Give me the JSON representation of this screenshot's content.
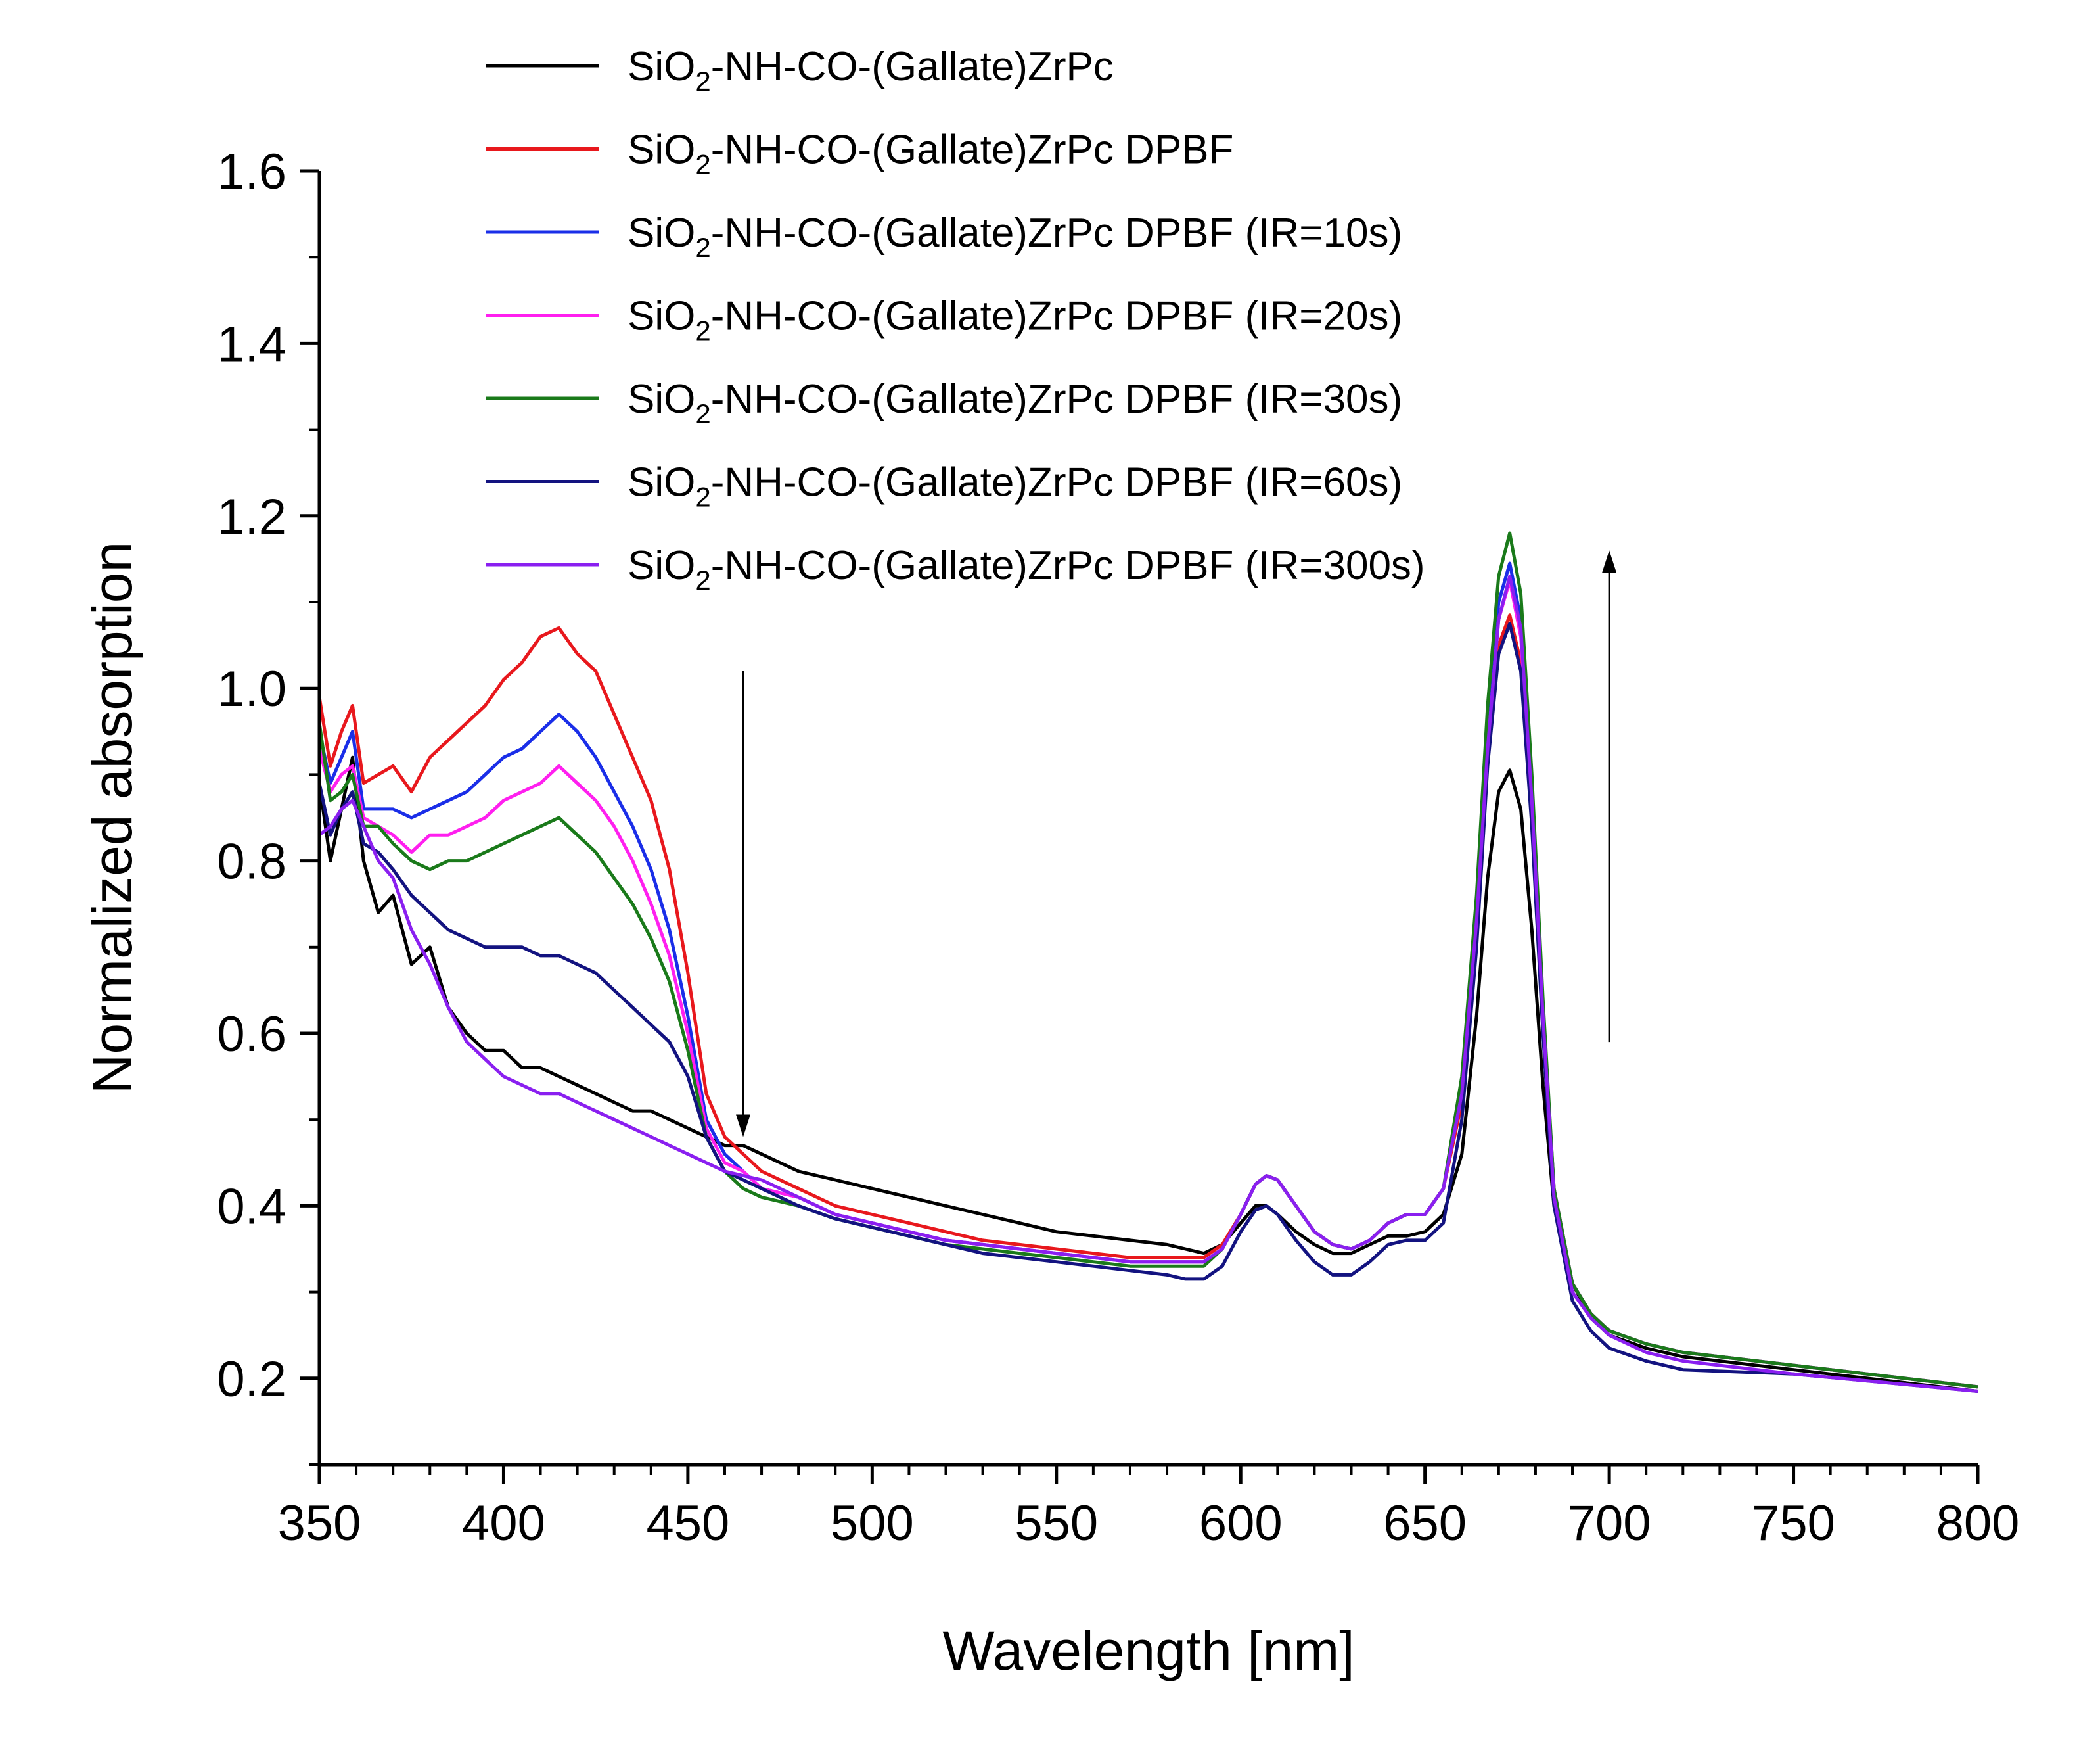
{
  "chart_data": {
    "type": "line",
    "title": "",
    "xlabel": "Wavelength [nm]",
    "ylabel": "Normalized absorption",
    "xlim": [
      350,
      800
    ],
    "ylim": [
      0.1,
      1.6
    ],
    "xticks": [
      350,
      400,
      450,
      500,
      550,
      600,
      650,
      700,
      750,
      800
    ],
    "xtick_labels": [
      "350",
      "400",
      "450",
      "500",
      "550",
      "600",
      "650",
      "700",
      "750",
      "800"
    ],
    "yticks": [
      0.2,
      0.4,
      0.6,
      0.8,
      1.0,
      1.2,
      1.4,
      1.6
    ],
    "ytick_labels": [
      "0.2",
      "0.4",
      "0.6",
      "0.8",
      "1.0",
      "1.2",
      "1.4",
      "1.6"
    ],
    "x": [
      350,
      353,
      356,
      359,
      362,
      366,
      370,
      375,
      380,
      385,
      390,
      395,
      400,
      405,
      410,
      415,
      420,
      425,
      430,
      435,
      440,
      445,
      450,
      455,
      460,
      465,
      470,
      480,
      490,
      500,
      510,
      520,
      530,
      540,
      550,
      560,
      570,
      580,
      585,
      590,
      595,
      600,
      604,
      607,
      610,
      615,
      620,
      625,
      630,
      635,
      640,
      645,
      650,
      655,
      660,
      664,
      667,
      670,
      673,
      676,
      679,
      682,
      685,
      690,
      695,
      700,
      710,
      720,
      750,
      800
    ],
    "legend_position": "top",
    "annotations": [
      {
        "type": "arrow",
        "direction": "down",
        "x": 465,
        "from_y": 1.02,
        "to_y": 0.48
      },
      {
        "type": "arrow",
        "direction": "up",
        "x": 700,
        "from_y": 0.59,
        "to_y": 1.16
      }
    ],
    "series": [
      {
        "name_parts": [
          "SiO",
          "2",
          "-NH-CO-(Gallate)ZrPc"
        ],
        "color": "#000000",
        "values": [
          0.89,
          0.8,
          0.86,
          0.92,
          0.8,
          0.74,
          0.76,
          0.68,
          0.7,
          0.63,
          0.6,
          0.58,
          0.58,
          0.56,
          0.56,
          0.55,
          0.54,
          0.53,
          0.52,
          0.51,
          0.51,
          0.5,
          0.49,
          0.48,
          0.47,
          0.47,
          0.46,
          0.44,
          0.43,
          0.42,
          0.41,
          0.4,
          0.39,
          0.38,
          0.37,
          0.365,
          0.36,
          0.355,
          0.35,
          0.345,
          0.355,
          0.38,
          0.4,
          0.4,
          0.39,
          0.37,
          0.355,
          0.345,
          0.345,
          0.355,
          0.365,
          0.365,
          0.37,
          0.39,
          0.46,
          0.62,
          0.78,
          0.88,
          0.905,
          0.86,
          0.72,
          0.54,
          0.4,
          0.31,
          0.27,
          0.25,
          0.235,
          0.225,
          0.21,
          0.185
        ]
      },
      {
        "name_parts": [
          "SiO",
          "2",
          "-NH-CO-(Gallate)ZrPc DPBF"
        ],
        "color": "#e8181d",
        "values": [
          0.99,
          0.91,
          0.95,
          0.98,
          0.89,
          0.9,
          0.91,
          0.88,
          0.92,
          0.94,
          0.96,
          0.98,
          1.01,
          1.03,
          1.06,
          1.07,
          1.04,
          1.02,
          0.97,
          0.92,
          0.87,
          0.79,
          0.67,
          0.53,
          0.48,
          0.46,
          0.44,
          0.42,
          0.4,
          0.39,
          0.38,
          0.37,
          0.36,
          0.355,
          0.35,
          0.345,
          0.34,
          0.34,
          0.34,
          0.34,
          0.355,
          0.39,
          0.425,
          0.435,
          0.43,
          0.4,
          0.37,
          0.355,
          0.35,
          0.36,
          0.38,
          0.39,
          0.39,
          0.42,
          0.52,
          0.72,
          0.92,
          1.05,
          1.085,
          1.03,
          0.86,
          0.62,
          0.42,
          0.31,
          0.275,
          0.255,
          0.24,
          0.23,
          0.215,
          0.19
        ]
      },
      {
        "name_parts": [
          "SiO",
          "2",
          "-NH-CO-(Gallate)ZrPc DPBF (IR=10s)"
        ],
        "color": "#1a2ee8",
        "values": [
          0.95,
          0.89,
          0.92,
          0.95,
          0.86,
          0.86,
          0.86,
          0.85,
          0.86,
          0.87,
          0.88,
          0.9,
          0.92,
          0.93,
          0.95,
          0.97,
          0.95,
          0.92,
          0.88,
          0.84,
          0.79,
          0.72,
          0.62,
          0.5,
          0.46,
          0.44,
          0.42,
          0.41,
          0.39,
          0.38,
          0.37,
          0.36,
          0.355,
          0.35,
          0.345,
          0.34,
          0.335,
          0.335,
          0.335,
          0.335,
          0.35,
          0.39,
          0.425,
          0.435,
          0.43,
          0.4,
          0.37,
          0.355,
          0.35,
          0.36,
          0.38,
          0.39,
          0.39,
          0.42,
          0.54,
          0.74,
          0.95,
          1.1,
          1.145,
          1.08,
          0.88,
          0.63,
          0.42,
          0.31,
          0.275,
          0.255,
          0.24,
          0.23,
          0.215,
          0.19
        ]
      },
      {
        "name_parts": [
          "SiO",
          "2",
          "-NH-CO-(Gallate)ZrPc DPBF (IR=20s)"
        ],
        "color": "#ff1fef",
        "values": [
          0.93,
          0.88,
          0.9,
          0.91,
          0.85,
          0.84,
          0.83,
          0.81,
          0.83,
          0.83,
          0.84,
          0.85,
          0.87,
          0.88,
          0.89,
          0.91,
          0.89,
          0.87,
          0.84,
          0.8,
          0.75,
          0.69,
          0.6,
          0.49,
          0.45,
          0.44,
          0.42,
          0.41,
          0.39,
          0.38,
          0.37,
          0.36,
          0.355,
          0.35,
          0.345,
          0.34,
          0.335,
          0.335,
          0.335,
          0.335,
          0.35,
          0.39,
          0.425,
          0.435,
          0.43,
          0.4,
          0.37,
          0.355,
          0.35,
          0.36,
          0.38,
          0.39,
          0.39,
          0.42,
          0.53,
          0.73,
          0.93,
          1.08,
          1.125,
          1.06,
          0.87,
          0.63,
          0.42,
          0.31,
          0.275,
          0.255,
          0.24,
          0.23,
          0.215,
          0.19
        ]
      },
      {
        "name_parts": [
          "SiO",
          "2",
          "-NH-CO-(Gallate)ZrPc DPBF (IR=30s)"
        ],
        "color": "#1a7a1a",
        "values": [
          0.96,
          0.87,
          0.88,
          0.9,
          0.84,
          0.84,
          0.82,
          0.8,
          0.79,
          0.8,
          0.8,
          0.81,
          0.82,
          0.83,
          0.84,
          0.85,
          0.83,
          0.81,
          0.78,
          0.75,
          0.71,
          0.66,
          0.58,
          0.48,
          0.44,
          0.42,
          0.41,
          0.4,
          0.385,
          0.375,
          0.365,
          0.355,
          0.35,
          0.345,
          0.34,
          0.335,
          0.33,
          0.33,
          0.33,
          0.33,
          0.35,
          0.39,
          0.425,
          0.435,
          0.43,
          0.4,
          0.37,
          0.355,
          0.35,
          0.36,
          0.38,
          0.39,
          0.39,
          0.42,
          0.55,
          0.76,
          0.98,
          1.13,
          1.18,
          1.11,
          0.9,
          0.64,
          0.42,
          0.31,
          0.275,
          0.255,
          0.24,
          0.23,
          0.215,
          0.19
        ]
      },
      {
        "name_parts": [
          "SiO",
          "2",
          "-NH-CO-(Gallate)ZrPc DPBF (IR=60s)"
        ],
        "color": "#131380",
        "values": [
          0.89,
          0.83,
          0.86,
          0.88,
          0.82,
          0.81,
          0.79,
          0.76,
          0.74,
          0.72,
          0.71,
          0.7,
          0.7,
          0.7,
          0.69,
          0.69,
          0.68,
          0.67,
          0.65,
          0.63,
          0.61,
          0.59,
          0.55,
          0.48,
          0.44,
          0.43,
          0.42,
          0.4,
          0.385,
          0.375,
          0.365,
          0.355,
          0.345,
          0.34,
          0.335,
          0.33,
          0.325,
          0.32,
          0.315,
          0.315,
          0.33,
          0.37,
          0.395,
          0.4,
          0.39,
          0.36,
          0.335,
          0.32,
          0.32,
          0.335,
          0.355,
          0.36,
          0.36,
          0.38,
          0.5,
          0.7,
          0.91,
          1.04,
          1.075,
          1.02,
          0.84,
          0.6,
          0.4,
          0.29,
          0.255,
          0.235,
          0.22,
          0.21,
          0.205,
          0.185
        ]
      },
      {
        "name_parts": [
          "SiO",
          "2",
          "-NH-CO-(Gallate)ZrPc DPBF (IR=300s)"
        ],
        "color": "#8a1ff0",
        "values": [
          0.83,
          0.84,
          0.86,
          0.87,
          0.84,
          0.8,
          0.78,
          0.72,
          0.68,
          0.63,
          0.59,
          0.57,
          0.55,
          0.54,
          0.53,
          0.53,
          0.52,
          0.51,
          0.5,
          0.49,
          0.48,
          0.47,
          0.46,
          0.45,
          0.44,
          0.435,
          0.43,
          0.41,
          0.39,
          0.38,
          0.37,
          0.36,
          0.355,
          0.35,
          0.345,
          0.34,
          0.335,
          0.335,
          0.335,
          0.335,
          0.35,
          0.39,
          0.425,
          0.435,
          0.43,
          0.4,
          0.37,
          0.355,
          0.35,
          0.36,
          0.38,
          0.39,
          0.39,
          0.42,
          0.53,
          0.73,
          0.93,
          1.08,
          1.13,
          1.07,
          0.87,
          0.62,
          0.41,
          0.3,
          0.27,
          0.25,
          0.23,
          0.22,
          0.205,
          0.185
        ]
      }
    ]
  }
}
